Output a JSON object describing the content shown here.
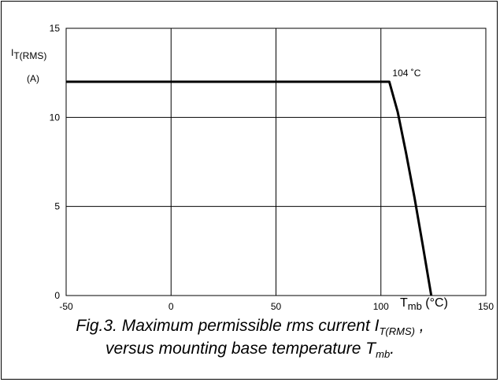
{
  "chart_data": {
    "type": "line",
    "xlabel": "T",
    "xlabel_sub": "mb",
    "xlabel_unit": "(°C)",
    "ylabel": "I",
    "ylabel_sub": "T(RMS)",
    "ylabel_unit": "(A)",
    "xlim": [
      -50,
      150
    ],
    "ylim": [
      0,
      15
    ],
    "xticks": [
      "-50",
      "0",
      "50",
      "100",
      "150"
    ],
    "yticks": [
      "0",
      "5",
      "10",
      "15"
    ],
    "xtick_values": [
      -50,
      0,
      50,
      100,
      150
    ],
    "ytick_values": [
      0,
      5,
      10,
      15
    ],
    "grid": true,
    "series": [
      {
        "x": [
          -50,
          104,
          108,
          112,
          116,
          120,
          124
        ],
        "y": [
          12,
          12,
          10.3,
          8.0,
          5.5,
          2.8,
          0
        ]
      }
    ],
    "annotations": [
      {
        "text": "104 ˚C",
        "x": 104,
        "y": 12
      }
    ]
  },
  "caption": {
    "line1_prefix": "Fig.3.  Maximum permissible rms current I",
    "line1_sub": "T(RMS)",
    "line1_suffix": " ,",
    "line2_prefix": "versus mounting base temperature T",
    "line2_sub": "mb",
    "line2_suffix": "."
  }
}
